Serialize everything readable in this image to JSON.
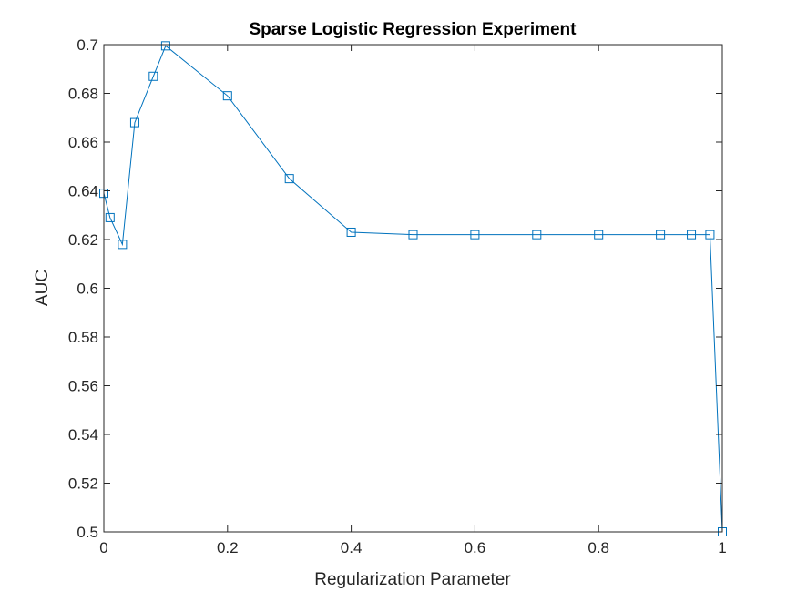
{
  "chart_data": {
    "type": "line",
    "title": "Sparse Logistic Regression Experiment",
    "xlabel": "Regularization Parameter",
    "ylabel": "AUC",
    "xlim": [
      0,
      1
    ],
    "ylim": [
      0.5,
      0.7
    ],
    "xticks": [
      0,
      0.2,
      0.4,
      0.6,
      0.8,
      1
    ],
    "xtick_labels": [
      "0",
      "0.2",
      "0.4",
      "0.6",
      "0.8",
      "1"
    ],
    "yticks": [
      0.5,
      0.52,
      0.54,
      0.56,
      0.58,
      0.6,
      0.62,
      0.64,
      0.66,
      0.68,
      0.7
    ],
    "ytick_labels": [
      "0.5",
      "0.52",
      "0.54",
      "0.56",
      "0.58",
      "0.6",
      "0.62",
      "0.64",
      "0.66",
      "0.68",
      "0.7"
    ],
    "grid": false,
    "marker": "square",
    "series": [
      {
        "color": "#0072BD",
        "x": [
          0,
          0.01,
          0.03,
          0.05,
          0.08,
          0.1,
          0.2,
          0.3,
          0.4,
          0.5,
          0.6,
          0.7,
          0.8,
          0.9,
          0.95,
          0.98,
          1.0
        ],
        "y": [
          0.639,
          0.629,
          0.618,
          0.668,
          0.687,
          0.6995,
          0.679,
          0.645,
          0.623,
          0.622,
          0.622,
          0.622,
          0.622,
          0.622,
          0.622,
          0.622,
          0.5
        ]
      }
    ]
  }
}
